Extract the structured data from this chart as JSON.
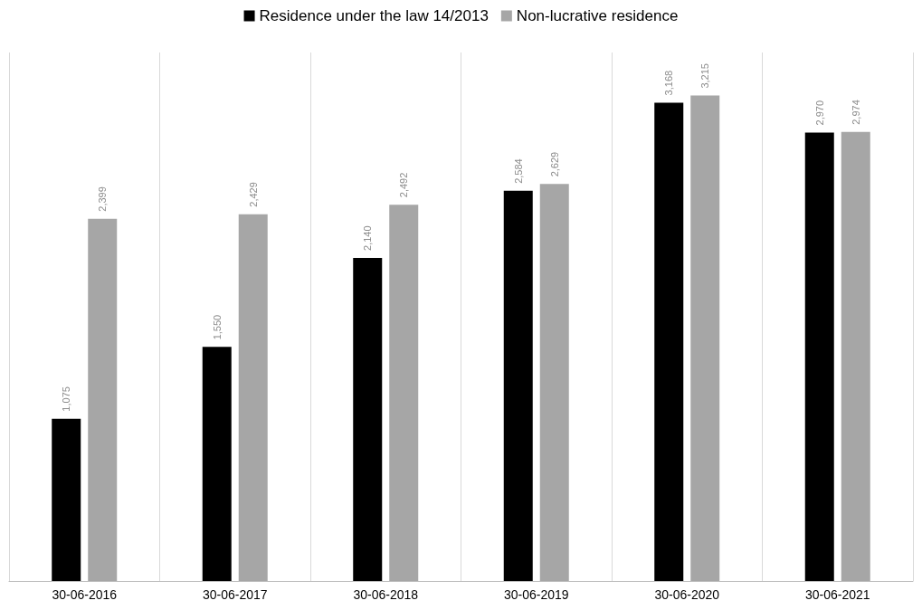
{
  "chart_data": {
    "type": "bar",
    "categories": [
      "30-06-2016",
      "30-06-2017",
      "30-06-2018",
      "30-06-2019",
      "30-06-2020",
      "30-06-2021"
    ],
    "series": [
      {
        "name": "Residence under the law 14/2013",
        "color": "#000000",
        "values": [
          1075,
          1550,
          2140,
          2584,
          3168,
          2970
        ],
        "value_labels": [
          "1,075",
          "1,550",
          "2,140",
          "2,584",
          "3,168",
          "2,970"
        ]
      },
      {
        "name": "Non-lucrative residence",
        "color": "#a6a6a6",
        "values": [
          2399,
          2429,
          2492,
          2629,
          3215,
          2974
        ],
        "value_labels": [
          "2,399",
          "2,429",
          "2,492",
          "2,629",
          "3,215",
          "2,974"
        ]
      }
    ],
    "ylim": [
      0,
      3500
    ],
    "grid": "x",
    "legend": "top"
  }
}
